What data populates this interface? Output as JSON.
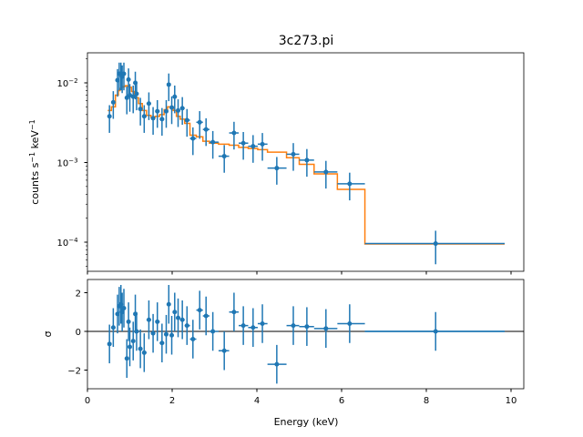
{
  "chart_data": [
    {
      "type": "line",
      "title": "3c273.pi",
      "ylabel": "counts s^-1 keV^-1",
      "yscale": "log",
      "xlim": [
        0,
        10.3
      ],
      "ylim": [
        4e-05,
        0.023
      ],
      "xticks": [
        0,
        2,
        4,
        6,
        8,
        10
      ],
      "yticks": [
        {
          "value": 0.0001,
          "base": "10",
          "exp": "−4"
        },
        {
          "value": 0.001,
          "base": "10",
          "exp": "−3"
        },
        {
          "value": 0.01,
          "base": "10",
          "exp": "−2"
        }
      ],
      "colors": {
        "data": "#1f77b4",
        "model": "#ff7f0e"
      },
      "data": {
        "x": [
          0.52,
          0.61,
          0.71,
          0.75,
          0.79,
          0.82,
          0.86,
          0.93,
          0.97,
          1.0,
          1.08,
          1.13,
          1.16,
          1.25,
          1.34,
          1.45,
          1.55,
          1.65,
          1.76,
          1.86,
          1.92,
          1.99,
          2.06,
          2.14,
          2.24,
          2.35,
          2.49,
          2.65,
          2.8,
          2.96,
          3.23,
          3.46,
          3.68,
          3.91,
          4.13,
          4.47,
          4.86,
          5.18,
          5.63,
          6.19,
          8.22
        ],
        "y": [
          0.0038,
          0.0057,
          0.0108,
          0.013,
          0.013,
          0.012,
          0.013,
          0.0065,
          0.011,
          0.007,
          0.0067,
          0.01,
          0.0073,
          0.0047,
          0.0038,
          0.0055,
          0.0036,
          0.0044,
          0.0035,
          0.0044,
          0.0095,
          0.0049,
          0.0067,
          0.0045,
          0.0048,
          0.0034,
          0.002,
          0.0032,
          0.0026,
          0.0018,
          0.0012,
          0.00235,
          0.00175,
          0.0016,
          0.0017,
          0.00085,
          0.00127,
          0.00107,
          0.00076,
          0.00054,
          9.6e-05
        ]
      },
      "model": {
        "edges": [
          0.48,
          0.565,
          0.66,
          0.73,
          0.77,
          0.805,
          0.84,
          0.895,
          0.95,
          0.985,
          1.04,
          1.105,
          1.145,
          1.205,
          1.295,
          1.395,
          1.5,
          1.6,
          1.705,
          1.81,
          1.89,
          1.955,
          2.025,
          2.1,
          2.19,
          2.295,
          2.42,
          2.57,
          2.725,
          2.88,
          3.095,
          3.345,
          3.57,
          3.795,
          4.02,
          4.25,
          4.7,
          5.0,
          5.35,
          5.9,
          6.55,
          9.85
        ],
        "y": [
          0.0045,
          0.005,
          0.007,
          0.008,
          0.0085,
          0.0088,
          0.009,
          0.0092,
          0.009,
          0.0088,
          0.0078,
          0.007,
          0.0065,
          0.0055,
          0.0045,
          0.0039,
          0.0037,
          0.0038,
          0.004,
          0.0046,
          0.005,
          0.005,
          0.0045,
          0.0038,
          0.0035,
          0.0031,
          0.0022,
          0.0021,
          0.00185,
          0.00175,
          0.0017,
          0.00165,
          0.00155,
          0.0015,
          0.00145,
          0.00135,
          0.00115,
          0.00095,
          0.00072,
          0.00046,
          9.5e-05
        ]
      }
    },
    {
      "type": "scatter",
      "xlabel": "Energy (keV)",
      "ylabel": "σ",
      "xlim": [
        0,
        10.3
      ],
      "ylim": [
        -3,
        2.7
      ],
      "yticks": [
        -2,
        0,
        2
      ],
      "xticks": [
        0,
        2,
        4,
        6,
        8,
        10
      ],
      "residuals": [
        -0.65,
        0.2,
        0.9,
        1.3,
        1.4,
        1.0,
        1.2,
        -1.4,
        0.5,
        -0.8,
        -0.5,
        0.9,
        0.0,
        -0.9,
        -1.1,
        0.6,
        -0.1,
        0.5,
        -0.6,
        -0.15,
        1.4,
        -0.2,
        1.0,
        0.7,
        0.6,
        0.3,
        -0.4,
        1.1,
        0.8,
        0.0,
        -1.0,
        1.0,
        0.3,
        0.2,
        0.4,
        -1.7,
        0.3,
        0.25,
        0.15,
        0.4,
        0.0
      ]
    }
  ]
}
